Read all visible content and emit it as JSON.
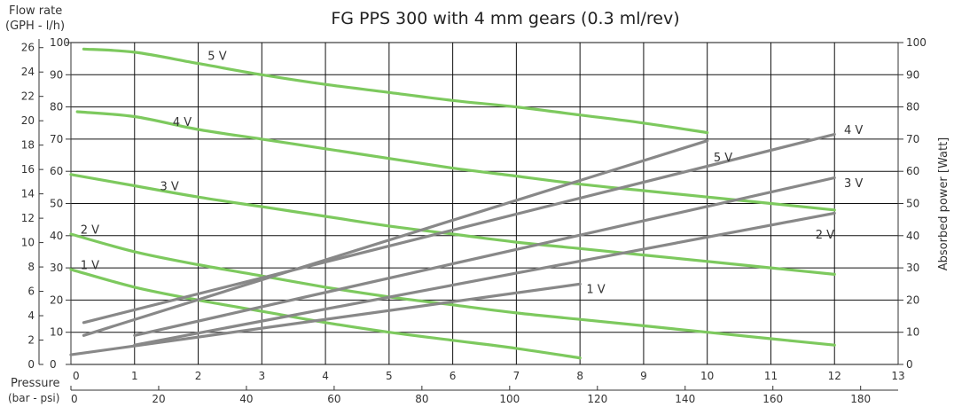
{
  "chart_data": {
    "type": "line",
    "title": "FG PPS 300 with 4 mm gears (0.3 ml/rev)",
    "xlabel": "Pressure",
    "xlabel_units": "(bar - psi)",
    "ylabel_left": "Flow rate",
    "ylabel_left_units": "(GPH - l/h)",
    "ylabel_right": "Absorbed power [Watt]",
    "x_bar_ticks": [
      "0",
      "1",
      "2",
      "3",
      "4",
      "5",
      "6",
      "7",
      "8",
      "9",
      "10",
      "11",
      "12",
      "13"
    ],
    "x_psi_ticks": [
      "0",
      "20",
      "40",
      "60",
      "80",
      "100",
      "120",
      "140",
      "160",
      "180"
    ],
    "x_psi_values": [
      0,
      20,
      40,
      60,
      80,
      100,
      120,
      140,
      160,
      180
    ],
    "y_lh_ticks": [
      "0",
      "10",
      "20",
      "30",
      "40",
      "50",
      "60",
      "70",
      "80",
      "90",
      "100"
    ],
    "y_gph_ticks": [
      "0",
      "2",
      "4",
      "6",
      "8",
      "10",
      "12",
      "14",
      "16",
      "18",
      "20",
      "22",
      "24",
      "26"
    ],
    "y_gph_values": [
      0,
      2,
      4,
      6,
      8,
      10,
      12,
      14,
      16,
      18,
      20,
      22,
      24,
      26
    ],
    "y_right_ticks": [
      "0",
      "10",
      "20",
      "30",
      "40",
      "50",
      "60",
      "70",
      "80",
      "90",
      "100"
    ],
    "xlim": [
      0,
      13
    ],
    "ylim": [
      0,
      100
    ],
    "grid": true,
    "flow_series": [
      {
        "name": "5 V",
        "color": "#7dc95e",
        "x": [
          0.2,
          1,
          2,
          3,
          4,
          5,
          6,
          7,
          8,
          9,
          10
        ],
        "y": [
          98,
          97,
          93.5,
          90,
          87,
          84.5,
          82,
          80,
          77.5,
          75,
          72
        ]
      },
      {
        "name": "4 V",
        "color": "#7dc95e",
        "x": [
          0.1,
          1,
          2,
          3,
          4,
          5,
          6,
          7,
          8,
          9,
          10,
          11,
          12
        ],
        "y": [
          78.5,
          77,
          73,
          70,
          67,
          64,
          61,
          58.5,
          56,
          54,
          52,
          50,
          48
        ]
      },
      {
        "name": "3 V",
        "color": "#7dc95e",
        "x": [
          0,
          1,
          2,
          3,
          4,
          5,
          6,
          7,
          8,
          9,
          10,
          11,
          12
        ],
        "y": [
          59,
          55.5,
          52,
          49,
          46,
          43,
          40.5,
          38,
          36,
          34,
          32,
          30,
          28
        ]
      },
      {
        "name": "2 V",
        "color": "#7dc95e",
        "x": [
          0,
          1,
          2,
          3,
          4,
          5,
          6,
          7,
          8,
          9,
          10,
          11,
          12
        ],
        "y": [
          40.5,
          35,
          31,
          27.5,
          24,
          21,
          18.5,
          16,
          14,
          12,
          10,
          8,
          6
        ]
      },
      {
        "name": "1 V",
        "color": "#7dc95e",
        "x": [
          0,
          1,
          2,
          3,
          4,
          5,
          6,
          7,
          8
        ],
        "y": [
          29.5,
          24,
          20,
          16.5,
          13,
          10,
          7.5,
          5,
          2
        ]
      }
    ],
    "power_series": [
      {
        "name": "4 V",
        "color": "#888888",
        "x": [
          0.2,
          12
        ],
        "y": [
          13,
          71.5
        ]
      },
      {
        "name": "5 V",
        "color": "#888888",
        "x": [
          0.2,
          10
        ],
        "y": [
          9,
          69.5
        ]
      },
      {
        "name": "3 V",
        "color": "#888888",
        "x": [
          1,
          12
        ],
        "y": [
          9,
          58
        ]
      },
      {
        "name": "2 V",
        "color": "#888888",
        "x": [
          1,
          12
        ],
        "y": [
          6,
          47
        ]
      },
      {
        "name": "1 V",
        "color": "#888888",
        "x": [
          0,
          8
        ],
        "y": [
          3,
          25
        ]
      }
    ],
    "flow_labels": [
      {
        "text": "5 V",
        "x": 2.15,
        "y": 96
      },
      {
        "text": "4 V",
        "x": 1.6,
        "y": 75.5
      },
      {
        "text": "3 V",
        "x": 1.4,
        "y": 55.5
      },
      {
        "text": "2 V",
        "x": 0.15,
        "y": 42
      },
      {
        "text": "1 V",
        "x": 0.15,
        "y": 31
      }
    ],
    "power_labels": [
      {
        "text": "4 V",
        "x": 12.15,
        "y": 73
      },
      {
        "text": "5 V",
        "x": 10.1,
        "y": 64.5
      },
      {
        "text": "3 V",
        "x": 12.15,
        "y": 56.5
      },
      {
        "text": "2 V",
        "x": 11.7,
        "y": 40.5
      },
      {
        "text": "1 V",
        "x": 8.1,
        "y": 23.5
      }
    ]
  }
}
